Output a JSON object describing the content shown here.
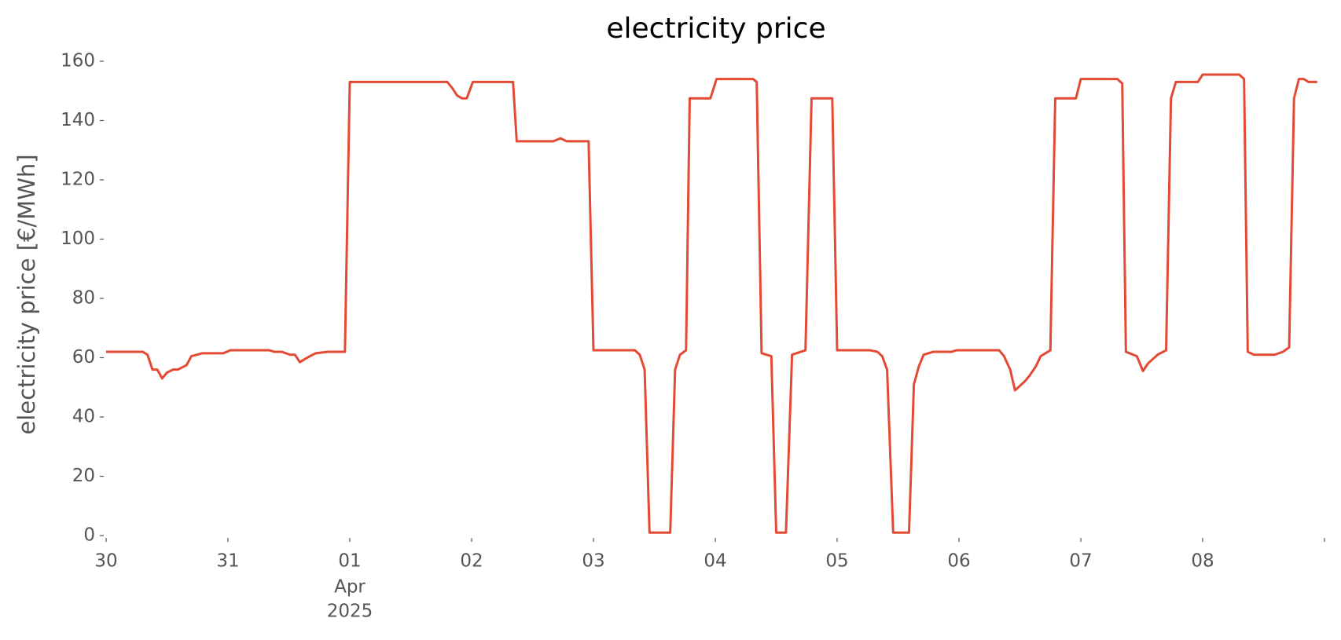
{
  "chart_data": {
    "type": "line",
    "title": "electricity price",
    "ylabel": "electricity price [€/MWh]",
    "x": [
      0,
      0.3,
      0.34,
      0.38,
      0.42,
      0.46,
      0.5,
      0.55,
      0.59,
      0.66,
      0.7,
      0.79,
      0.96,
      1.02,
      1.34,
      1.38,
      1.44,
      1.51,
      1.55,
      1.59,
      1.65,
      1.72,
      1.82,
      1.96,
      2.0,
      2.8,
      2.84,
      2.88,
      2.92,
      2.96,
      3.01,
      3.34,
      3.37,
      3.67,
      3.73,
      3.78,
      3.96,
      4.0,
      4.34,
      4.38,
      4.42,
      4.46,
      4.63,
      4.67,
      4.71,
      4.76,
      4.79,
      4.96,
      5.01,
      5.31,
      5.34,
      5.38,
      5.46,
      5.5,
      5.58,
      5.63,
      5.74,
      5.79,
      5.96,
      6.0,
      6.27,
      6.33,
      6.37,
      6.41,
      6.46,
      6.59,
      6.63,
      6.67,
      6.71,
      6.79,
      6.94,
      6.98,
      7.33,
      7.37,
      7.42,
      7.46,
      7.54,
      7.58,
      7.63,
      7.67,
      7.75,
      7.79,
      7.96,
      8.0,
      8.3,
      8.34,
      8.37,
      8.46,
      8.51,
      8.55,
      8.63,
      8.7,
      8.74,
      8.78,
      8.96,
      9.0,
      9.3,
      9.34,
      9.37,
      9.42,
      9.48,
      9.59,
      9.66,
      9.71,
      9.75,
      9.79,
      9.83,
      9.87,
      9.94
    ],
    "series": [
      {
        "name": "electricity price",
        "color": "#e24a33",
        "values": [
          62,
          62,
          61,
          56,
          56,
          53,
          55,
          56,
          56,
          57.5,
          60.5,
          61.5,
          61.5,
          62.5,
          62.5,
          62,
          62,
          61,
          61,
          58.5,
          60,
          61.5,
          62,
          62,
          153,
          153,
          151,
          148.5,
          147.5,
          147.5,
          153,
          153,
          133,
          133,
          134,
          133,
          133,
          62.5,
          62.5,
          61,
          56,
          1,
          1,
          56,
          61,
          62.5,
          147.5,
          147.5,
          154,
          154,
          153,
          61.5,
          60.5,
          1,
          1,
          61,
          62.5,
          147.5,
          147.5,
          62.5,
          62.5,
          62,
          60.5,
          56,
          1,
          1,
          51,
          57,
          61,
          62,
          62,
          62.5,
          62.5,
          60.5,
          56,
          49,
          52,
          54,
          57,
          60.5,
          62.5,
          147.5,
          147.5,
          154,
          154,
          152.5,
          62,
          60.5,
          55.5,
          58,
          61,
          62.5,
          147.5,
          153,
          153,
          155.5,
          155.5,
          154,
          62,
          61,
          61,
          61,
          62,
          63.5,
          147.5,
          154,
          154,
          153,
          153
        ]
      }
    ],
    "xlim": [
      0,
      10
    ],
    "xticks": [
      {
        "value": 0,
        "label": "30"
      },
      {
        "value": 1,
        "label": "31"
      },
      {
        "value": 2,
        "label": "01"
      },
      {
        "value": 3,
        "label": "02"
      },
      {
        "value": 4,
        "label": "03"
      },
      {
        "value": 5,
        "label": "04"
      },
      {
        "value": 6,
        "label": "05"
      },
      {
        "value": 7,
        "label": "06"
      },
      {
        "value": 8,
        "label": "07"
      },
      {
        "value": 9,
        "label": "08"
      },
      {
        "value": 10,
        "label": null
      }
    ],
    "x_date_label": {
      "value": 2,
      "lines": [
        "Apr",
        "2025"
      ]
    },
    "ylim": [
      0,
      160
    ],
    "yticks": [
      0,
      20,
      40,
      60,
      80,
      100,
      120,
      140,
      160
    ],
    "grid": false
  }
}
